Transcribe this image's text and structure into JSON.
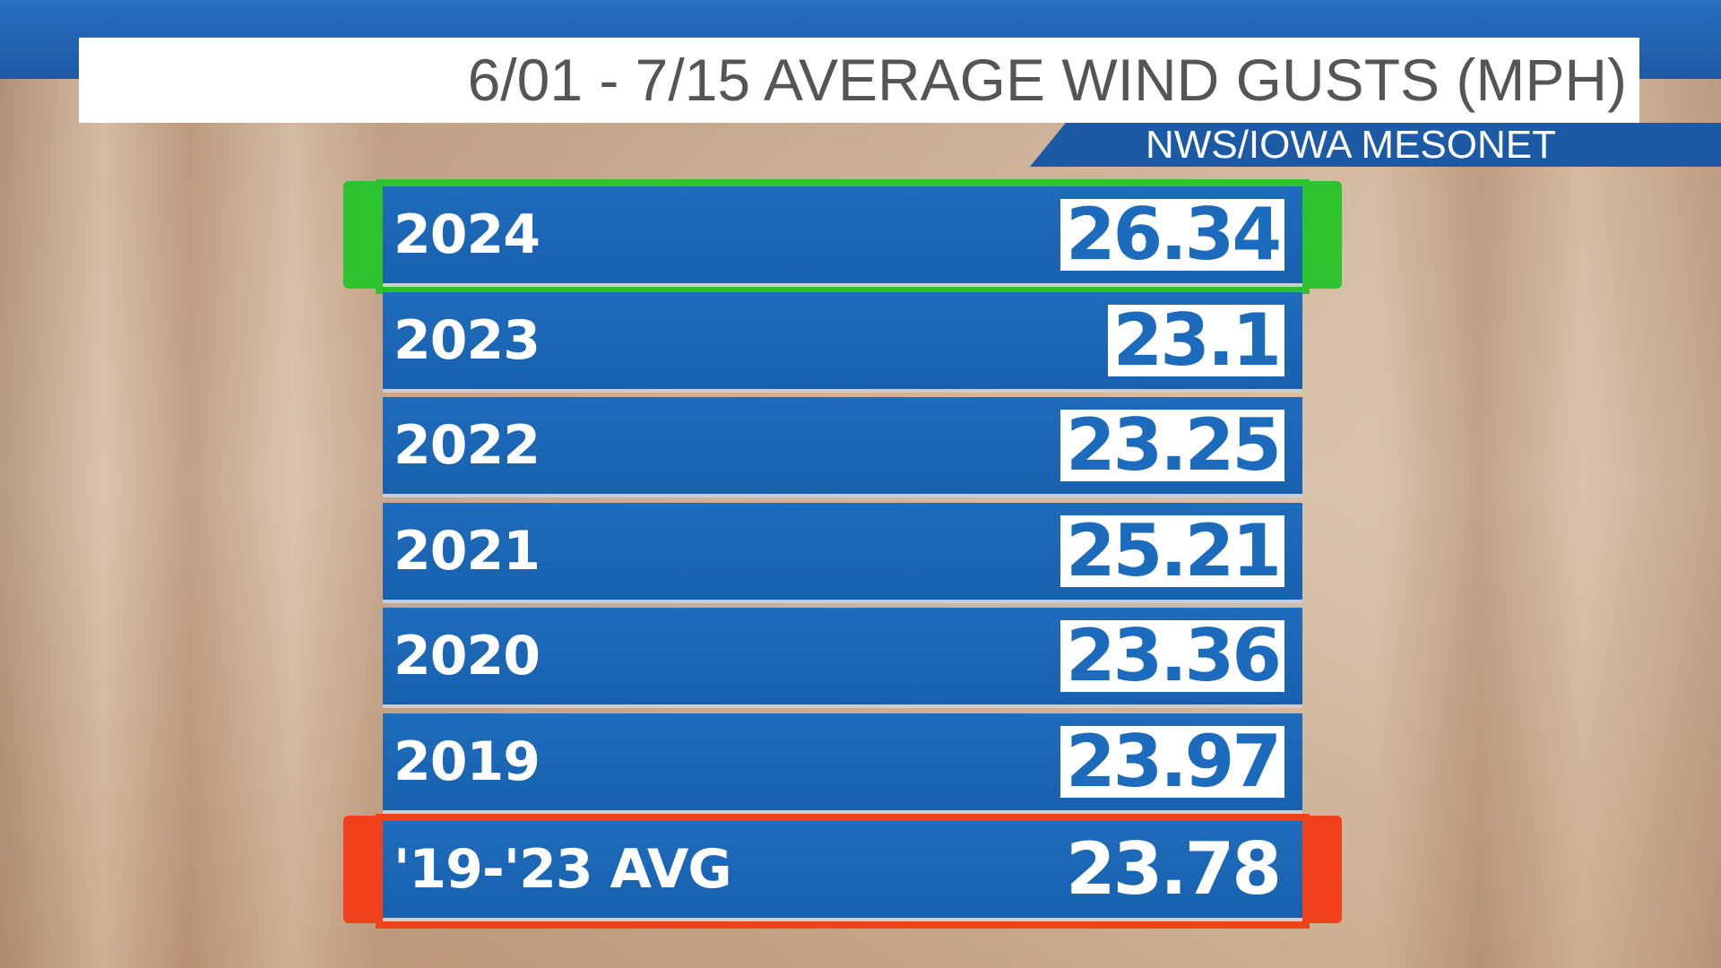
{
  "header": {
    "title": "6/01 - 7/15 AVERAGE WIND GUSTS (MPH)",
    "source": "NWS/IOWA MESONET"
  },
  "table": {
    "rows": [
      [
        "2024",
        "26.34"
      ],
      [
        "2023",
        "23.1"
      ],
      [
        "2022",
        "23.25"
      ],
      [
        "2021",
        "25.21"
      ],
      [
        "2020",
        "23.36"
      ],
      [
        "2019",
        "23.97"
      ],
      [
        "'19-'23 AVG",
        "23.78"
      ]
    ]
  }
}
